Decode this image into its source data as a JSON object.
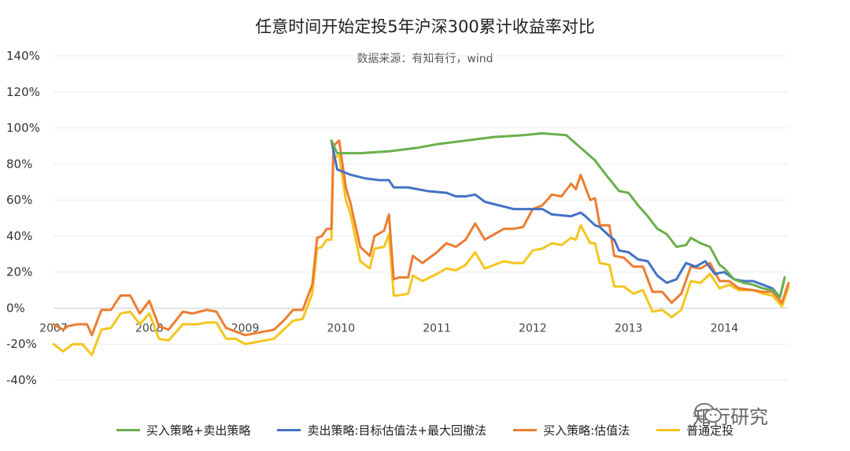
{
  "chart_data": {
    "type": "line",
    "title": "任意时间开始定投5年沪深300累计收益率对比",
    "subtitle": "数据来源：有知有行，wind",
    "xlabel": "",
    "ylabel": "",
    "x_range": [
      2007.0,
      2014.67
    ],
    "x_ticks": [
      2007,
      2008,
      2009,
      2010,
      2011,
      2012,
      2013,
      2014
    ],
    "x_tick_labels": [
      "2007",
      "2008",
      "2009",
      "2010",
      "2011",
      "2012",
      "2013",
      "2014"
    ],
    "y_range": [
      -40,
      140
    ],
    "y_ticks": [
      -40,
      -20,
      0,
      20,
      40,
      60,
      80,
      100,
      120,
      140
    ],
    "y_tick_labels": [
      "-40%",
      "-20%",
      "0%",
      "20%",
      "40%",
      "60%",
      "80%",
      "100%",
      "120%",
      "140%"
    ],
    "grid": "horizontal",
    "legend_position": "bottom",
    "series": [
      {
        "name": "买入策略+卖出策略",
        "color": "#6ab04c",
        "points": [
          [
            2009.9,
            93
          ],
          [
            2009.96,
            86
          ],
          [
            2010.2,
            86
          ],
          [
            2010.5,
            87
          ],
          [
            2010.8,
            89
          ],
          [
            2011.0,
            91
          ],
          [
            2011.3,
            93
          ],
          [
            2011.6,
            95
          ],
          [
            2011.9,
            96
          ],
          [
            2012.1,
            97
          ],
          [
            2012.35,
            96
          ],
          [
            2012.5,
            89
          ],
          [
            2012.65,
            82
          ],
          [
            2012.75,
            75
          ],
          [
            2012.9,
            65
          ],
          [
            2013.0,
            64
          ],
          [
            2013.1,
            57
          ],
          [
            2013.2,
            51
          ],
          [
            2013.3,
            44
          ],
          [
            2013.4,
            41
          ],
          [
            2013.5,
            34
          ],
          [
            2013.6,
            35
          ],
          [
            2013.65,
            39
          ],
          [
            2013.75,
            36
          ],
          [
            2013.85,
            34
          ],
          [
            2013.95,
            24
          ],
          [
            2014.0,
            22
          ],
          [
            2014.1,
            16
          ],
          [
            2014.2,
            14
          ],
          [
            2014.3,
            13
          ],
          [
            2014.4,
            11
          ],
          [
            2014.5,
            10
          ],
          [
            2014.58,
            6
          ],
          [
            2014.63,
            17
          ]
        ]
      },
      {
        "name": "卖出策略:目标估值法+最大回撤法",
        "color": "#4472c4",
        "points": [
          [
            2009.9,
            93
          ],
          [
            2009.96,
            77
          ],
          [
            2010.1,
            74
          ],
          [
            2010.25,
            72
          ],
          [
            2010.4,
            71
          ],
          [
            2010.5,
            71
          ],
          [
            2010.55,
            67
          ],
          [
            2010.7,
            67
          ],
          [
            2010.9,
            65
          ],
          [
            2011.1,
            64
          ],
          [
            2011.2,
            62
          ],
          [
            2011.3,
            62
          ],
          [
            2011.4,
            63
          ],
          [
            2011.5,
            59
          ],
          [
            2011.65,
            57
          ],
          [
            2011.8,
            55
          ],
          [
            2012.0,
            55
          ],
          [
            2012.1,
            55
          ],
          [
            2012.2,
            52
          ],
          [
            2012.4,
            51
          ],
          [
            2012.5,
            53
          ],
          [
            2012.55,
            51
          ],
          [
            2012.65,
            46
          ],
          [
            2012.7,
            45
          ],
          [
            2012.8,
            40
          ],
          [
            2012.85,
            38
          ],
          [
            2012.9,
            32
          ],
          [
            2013.0,
            31
          ],
          [
            2013.1,
            27
          ],
          [
            2013.2,
            26
          ],
          [
            2013.3,
            18
          ],
          [
            2013.4,
            14
          ],
          [
            2013.5,
            16
          ],
          [
            2013.6,
            25
          ],
          [
            2013.7,
            23
          ],
          [
            2013.8,
            26
          ],
          [
            2013.9,
            19
          ],
          [
            2014.0,
            20
          ],
          [
            2014.1,
            16
          ],
          [
            2014.2,
            15
          ],
          [
            2014.3,
            15
          ],
          [
            2014.4,
            13
          ],
          [
            2014.5,
            11
          ],
          [
            2014.58,
            6
          ],
          [
            2014.63,
            17
          ]
        ]
      },
      {
        "name": "买入策略:估值法",
        "color": "#ed7d31",
        "points": [
          [
            2007.0,
            -9
          ],
          [
            2007.1,
            -12
          ],
          [
            2007.15,
            -10
          ],
          [
            2007.25,
            -9
          ],
          [
            2007.35,
            -9
          ],
          [
            2007.4,
            -15
          ],
          [
            2007.5,
            -1
          ],
          [
            2007.6,
            -1
          ],
          [
            2007.7,
            7
          ],
          [
            2007.8,
            7
          ],
          [
            2007.9,
            -3
          ],
          [
            2008.0,
            4
          ],
          [
            2008.1,
            -10
          ],
          [
            2008.2,
            -12
          ],
          [
            2008.35,
            -2
          ],
          [
            2008.45,
            -3
          ],
          [
            2008.6,
            -1
          ],
          [
            2008.7,
            -2
          ],
          [
            2008.8,
            -11
          ],
          [
            2008.9,
            -13
          ],
          [
            2009.0,
            -15
          ],
          [
            2009.1,
            -14
          ],
          [
            2009.2,
            -13
          ],
          [
            2009.3,
            -12
          ],
          [
            2009.4,
            -7
          ],
          [
            2009.5,
            -1
          ],
          [
            2009.6,
            -1
          ],
          [
            2009.7,
            13
          ],
          [
            2009.75,
            39
          ],
          [
            2009.8,
            40
          ],
          [
            2009.85,
            44
          ],
          [
            2009.9,
            44
          ],
          [
            2009.92,
            90
          ],
          [
            2009.98,
            93
          ],
          [
            2010.05,
            67
          ],
          [
            2010.1,
            58
          ],
          [
            2010.2,
            34
          ],
          [
            2010.3,
            29
          ],
          [
            2010.35,
            40
          ],
          [
            2010.45,
            43
          ],
          [
            2010.5,
            52
          ],
          [
            2010.55,
            16
          ],
          [
            2010.6,
            17
          ],
          [
            2010.7,
            17
          ],
          [
            2010.75,
            29
          ],
          [
            2010.85,
            25
          ],
          [
            2011.0,
            31
          ],
          [
            2011.1,
            36
          ],
          [
            2011.2,
            34
          ],
          [
            2011.3,
            38
          ],
          [
            2011.4,
            47
          ],
          [
            2011.5,
            38
          ],
          [
            2011.6,
            41
          ],
          [
            2011.7,
            44
          ],
          [
            2011.8,
            44
          ],
          [
            2011.9,
            45
          ],
          [
            2012.0,
            55
          ],
          [
            2012.1,
            57
          ],
          [
            2012.2,
            63
          ],
          [
            2012.3,
            62
          ],
          [
            2012.4,
            69
          ],
          [
            2012.45,
            66
          ],
          [
            2012.5,
            74
          ],
          [
            2012.6,
            60
          ],
          [
            2012.65,
            61
          ],
          [
            2012.7,
            46
          ],
          [
            2012.8,
            46
          ],
          [
            2012.85,
            29
          ],
          [
            2012.95,
            28
          ],
          [
            2013.05,
            23
          ],
          [
            2013.15,
            23
          ],
          [
            2013.25,
            9
          ],
          [
            2013.35,
            9
          ],
          [
            2013.45,
            3
          ],
          [
            2013.55,
            8
          ],
          [
            2013.65,
            23
          ],
          [
            2013.75,
            22
          ],
          [
            2013.85,
            25
          ],
          [
            2013.95,
            15
          ],
          [
            2014.05,
            15
          ],
          [
            2014.15,
            11
          ],
          [
            2014.3,
            10
          ],
          [
            2014.4,
            9
          ],
          [
            2014.5,
            9
          ],
          [
            2014.6,
            3
          ],
          [
            2014.67,
            14
          ]
        ]
      },
      {
        "name": "普通定投",
        "color": "#f5c51e",
        "points": [
          [
            2007.0,
            -20
          ],
          [
            2007.1,
            -24
          ],
          [
            2007.2,
            -20
          ],
          [
            2007.3,
            -20
          ],
          [
            2007.4,
            -26
          ],
          [
            2007.5,
            -12
          ],
          [
            2007.6,
            -11
          ],
          [
            2007.7,
            -3
          ],
          [
            2007.8,
            -2
          ],
          [
            2007.9,
            -9
          ],
          [
            2008.0,
            -3
          ],
          [
            2008.1,
            -17
          ],
          [
            2008.2,
            -18
          ],
          [
            2008.35,
            -9
          ],
          [
            2008.5,
            -9
          ],
          [
            2008.6,
            -8
          ],
          [
            2008.7,
            -8
          ],
          [
            2008.8,
            -17
          ],
          [
            2008.9,
            -17
          ],
          [
            2009.0,
            -20
          ],
          [
            2009.1,
            -19
          ],
          [
            2009.2,
            -18
          ],
          [
            2009.3,
            -17
          ],
          [
            2009.4,
            -12
          ],
          [
            2009.5,
            -7
          ],
          [
            2009.6,
            -6
          ],
          [
            2009.7,
            8
          ],
          [
            2009.75,
            33
          ],
          [
            2009.8,
            34
          ],
          [
            2009.85,
            38
          ],
          [
            2009.9,
            38
          ],
          [
            2009.92,
            83
          ],
          [
            2009.98,
            85
          ],
          [
            2010.05,
            60
          ],
          [
            2010.1,
            52
          ],
          [
            2010.2,
            26
          ],
          [
            2010.3,
            22
          ],
          [
            2010.35,
            33
          ],
          [
            2010.45,
            34
          ],
          [
            2010.5,
            41
          ],
          [
            2010.55,
            7
          ],
          [
            2010.6,
            7
          ],
          [
            2010.7,
            8
          ],
          [
            2010.75,
            18
          ],
          [
            2010.85,
            15
          ],
          [
            2011.0,
            19
          ],
          [
            2011.1,
            22
          ],
          [
            2011.2,
            21
          ],
          [
            2011.3,
            24
          ],
          [
            2011.4,
            31
          ],
          [
            2011.5,
            22
          ],
          [
            2011.6,
            24
          ],
          [
            2011.7,
            26
          ],
          [
            2011.8,
            25
          ],
          [
            2011.9,
            25
          ],
          [
            2012.0,
            32
          ],
          [
            2012.1,
            33
          ],
          [
            2012.2,
            36
          ],
          [
            2012.3,
            35
          ],
          [
            2012.4,
            39
          ],
          [
            2012.45,
            38
          ],
          [
            2012.5,
            46
          ],
          [
            2012.6,
            36
          ],
          [
            2012.65,
            36
          ],
          [
            2012.7,
            25
          ],
          [
            2012.8,
            24
          ],
          [
            2012.85,
            12
          ],
          [
            2012.95,
            12
          ],
          [
            2013.05,
            8
          ],
          [
            2013.15,
            10
          ],
          [
            2013.25,
            -2
          ],
          [
            2013.35,
            -1
          ],
          [
            2013.45,
            -5
          ],
          [
            2013.55,
            -1
          ],
          [
            2013.65,
            15
          ],
          [
            2013.75,
            14
          ],
          [
            2013.85,
            19
          ],
          [
            2013.95,
            11
          ],
          [
            2014.05,
            13
          ],
          [
            2014.15,
            10
          ],
          [
            2014.3,
            10
          ],
          [
            2014.4,
            8
          ],
          [
            2014.5,
            7
          ],
          [
            2014.6,
            1
          ],
          [
            2014.67,
            12
          ]
        ]
      }
    ]
  },
  "watermark": {
    "text": "知行研究",
    "icon": "wechat-icon"
  }
}
